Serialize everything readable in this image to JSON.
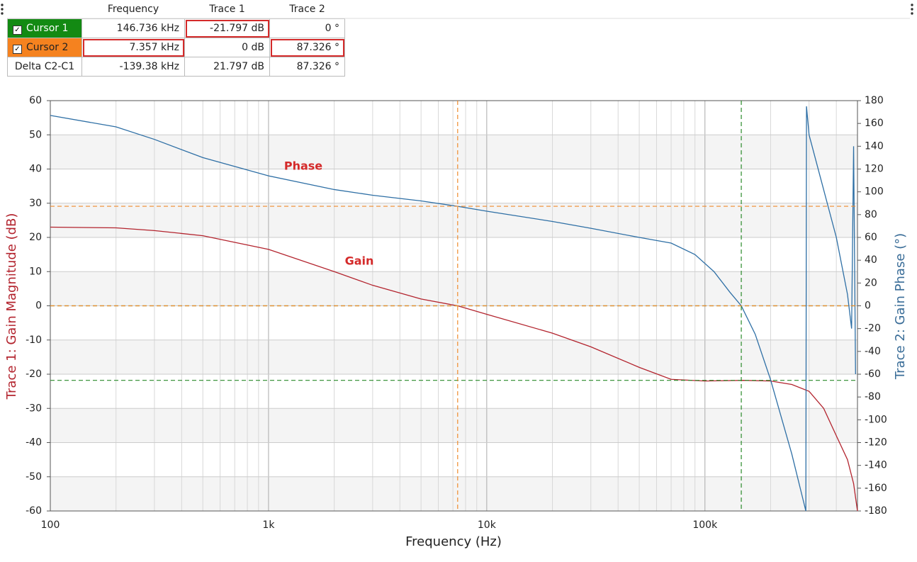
{
  "cursor_table": {
    "header": [
      "Frequency",
      "Trace 1",
      "Trace 2"
    ],
    "rows": [
      [
        "Cursor 1",
        "146.736 kHz",
        "-21.797 dB",
        "0 °"
      ],
      [
        "Cursor 2",
        "7.357 kHz",
        "0 dB",
        "87.326 °"
      ],
      [
        "Delta C2-C1",
        "-139.38 kHz",
        "21.797 dB",
        "87.326 °"
      ]
    ]
  },
  "chart_data": {
    "type": "line",
    "x_label": "Frequency (Hz)",
    "y_label": "Trace 1: Gain Magnitude (dB)",
    "y2_label": "Trace 2: Gain Phase (°)",
    "log_x": true,
    "grid": true,
    "xlim": [
      100,
      500000
    ],
    "xticks": [
      100,
      {
        "value": 1000,
        "label": "1k"
      },
      {
        "value": 10000,
        "label": "10k"
      },
      {
        "value": 100000,
        "label": "100k"
      }
    ],
    "ylim": [
      -60,
      60
    ],
    "yticks": [
      -60,
      -50,
      -40,
      -30,
      -20,
      -10,
      0,
      10,
      20,
      30,
      40,
      50,
      60
    ],
    "y2lim": [
      -180,
      180
    ],
    "y2ticks": [
      -180,
      -160,
      -140,
      -120,
      -100,
      -80,
      -60,
      -40,
      -20,
      0,
      20,
      40,
      60,
      80,
      100,
      120,
      140,
      160,
      180
    ],
    "series": [
      {
        "name": "Gain",
        "color": "#b3242e",
        "axis": "y",
        "x": [
          100,
          200,
          300,
          500,
          1000,
          2000,
          3000,
          5000,
          7357,
          10000,
          20000,
          30000,
          50000,
          70000,
          100000,
          150000,
          200000,
          250000,
          300000,
          350000,
          400000,
          450000,
          480000,
          500000
        ],
        "values": [
          23,
          22.8,
          22,
          20.5,
          16.5,
          10,
          6,
          2,
          0,
          -2.5,
          -8,
          -12,
          -18,
          -21.5,
          -22,
          -21.8,
          -22,
          -23,
          -25,
          -30,
          -38,
          -45,
          -52,
          -60
        ]
      },
      {
        "name": "Phase",
        "color": "#2e6fa5",
        "axis": "y2",
        "x": [
          100,
          200,
          300,
          500,
          1000,
          2000,
          3000,
          5000,
          7357,
          10000,
          20000,
          30000,
          50000,
          70000,
          90000,
          110000,
          130000,
          146736,
          170000,
          200000,
          250000,
          290000,
          292000,
          300000,
          400000,
          450000,
          470000,
          480000,
          490000
        ],
        "values": [
          167,
          157,
          146,
          130,
          114,
          102,
          97,
          92,
          87.3,
          83,
          74,
          68,
          60,
          55,
          45,
          30,
          12,
          0,
          -25,
          -65,
          -130,
          -180,
          175,
          150,
          60,
          10,
          -20,
          140,
          -60
        ]
      }
    ],
    "cursors": [
      {
        "x": 146736,
        "y": -21.797,
        "y2": 0,
        "color": "#2a8a2a"
      },
      {
        "x": 7357,
        "y": 0,
        "y2": 87.326,
        "color": "#ef8a2c"
      }
    ],
    "annotations": [
      "Phase",
      "Gain"
    ]
  }
}
